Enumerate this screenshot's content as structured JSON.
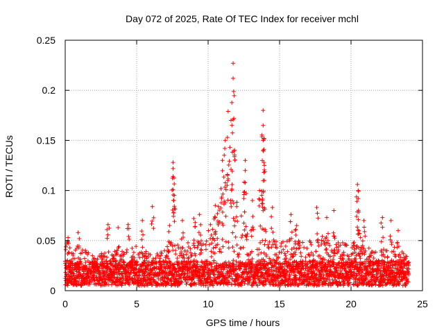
{
  "chart_data": {
    "type": "scatter",
    "title": "Day 072 of 2025, Rate Of TEC Index for receiver mchl",
    "xlabel": "GPS time / hours",
    "ylabel": "ROTI / TECUs",
    "xlim": [
      0,
      25
    ],
    "ylim": [
      0,
      0.25
    ],
    "x_ticks": [
      0,
      5,
      10,
      15,
      20,
      25
    ],
    "x_tick_labels": [
      "0",
      "5",
      "10",
      "15",
      "20",
      "25"
    ],
    "y_ticks": [
      0,
      0.05,
      0.1,
      0.15,
      0.2,
      0.25
    ],
    "y_tick_labels": [
      "0",
      "0.05",
      "0.1",
      "0.15",
      "0.2",
      "0.25"
    ],
    "grid": true,
    "marker": "+",
    "color": "#ff0000",
    "series": [
      {
        "name": "ROTI",
        "baseline_range": [
          0.005,
          0.04
        ],
        "envelope": [
          {
            "x": 0,
            "y": 0.05
          },
          {
            "x": 0.5,
            "y": 0.04
          },
          {
            "x": 1,
            "y": 0.045
          },
          {
            "x": 2,
            "y": 0.035
          },
          {
            "x": 3,
            "y": 0.04
          },
          {
            "x": 4,
            "y": 0.04
          },
          {
            "x": 5,
            "y": 0.045
          },
          {
            "x": 6,
            "y": 0.04
          },
          {
            "x": 7,
            "y": 0.05
          },
          {
            "x": 8,
            "y": 0.045
          },
          {
            "x": 9,
            "y": 0.05
          },
          {
            "x": 10,
            "y": 0.06
          },
          {
            "x": 10.5,
            "y": 0.08
          },
          {
            "x": 11,
            "y": 0.11
          },
          {
            "x": 11.5,
            "y": 0.13
          },
          {
            "x": 12,
            "y": 0.09
          },
          {
            "x": 12.5,
            "y": 0.07
          },
          {
            "x": 13,
            "y": 0.06
          },
          {
            "x": 13.8,
            "y": 0.07
          },
          {
            "x": 14.5,
            "y": 0.05
          },
          {
            "x": 15,
            "y": 0.05
          },
          {
            "x": 16,
            "y": 0.05
          },
          {
            "x": 17,
            "y": 0.05
          },
          {
            "x": 18,
            "y": 0.055
          },
          {
            "x": 19,
            "y": 0.05
          },
          {
            "x": 20,
            "y": 0.045
          },
          {
            "x": 20.5,
            "y": 0.06
          },
          {
            "x": 21,
            "y": 0.045
          },
          {
            "x": 22,
            "y": 0.04
          },
          {
            "x": 23,
            "y": 0.045
          },
          {
            "x": 24,
            "y": 0.04
          }
        ],
        "peaks": [
          {
            "x": 0.2,
            "y": 0.053
          },
          {
            "x": 0.9,
            "y": 0.058
          },
          {
            "x": 3.0,
            "y": 0.066
          },
          {
            "x": 3.7,
            "y": 0.063
          },
          {
            "x": 4.4,
            "y": 0.066
          },
          {
            "x": 5.4,
            "y": 0.07
          },
          {
            "x": 6.1,
            "y": 0.084
          },
          {
            "x": 7.3,
            "y": 0.065
          },
          {
            "x": 7.55,
            "y": 0.128
          },
          {
            "x": 7.55,
            "y": 0.122
          },
          {
            "x": 7.55,
            "y": 0.114
          },
          {
            "x": 7.6,
            "y": 0.09
          },
          {
            "x": 8.2,
            "y": 0.07
          },
          {
            "x": 9.0,
            "y": 0.072
          },
          {
            "x": 9.4,
            "y": 0.076
          },
          {
            "x": 10.5,
            "y": 0.085
          },
          {
            "x": 11.0,
            "y": 0.13
          },
          {
            "x": 11.2,
            "y": 0.15
          },
          {
            "x": 11.4,
            "y": 0.179
          },
          {
            "x": 11.6,
            "y": 0.17
          },
          {
            "x": 11.75,
            "y": 0.227
          },
          {
            "x": 11.75,
            "y": 0.212
          },
          {
            "x": 11.8,
            "y": 0.172
          },
          {
            "x": 12.6,
            "y": 0.13
          },
          {
            "x": 12.6,
            "y": 0.12
          },
          {
            "x": 13.1,
            "y": 0.09
          },
          {
            "x": 13.6,
            "y": 0.1
          },
          {
            "x": 13.85,
            "y": 0.18
          },
          {
            "x": 13.85,
            "y": 0.165
          },
          {
            "x": 13.85,
            "y": 0.15
          },
          {
            "x": 13.85,
            "y": 0.14
          },
          {
            "x": 13.9,
            "y": 0.128
          },
          {
            "x": 13.9,
            "y": 0.118
          },
          {
            "x": 14.5,
            "y": 0.083
          },
          {
            "x": 15.8,
            "y": 0.076
          },
          {
            "x": 16.2,
            "y": 0.065
          },
          {
            "x": 17.6,
            "y": 0.083
          },
          {
            "x": 18.3,
            "y": 0.073
          },
          {
            "x": 18.8,
            "y": 0.08
          },
          {
            "x": 20.45,
            "y": 0.106
          },
          {
            "x": 20.5,
            "y": 0.1
          },
          {
            "x": 20.5,
            "y": 0.092
          },
          {
            "x": 20.9,
            "y": 0.07
          },
          {
            "x": 22.2,
            "y": 0.073
          },
          {
            "x": 22.8,
            "y": 0.07
          },
          {
            "x": 23.3,
            "y": 0.06
          }
        ]
      }
    ]
  }
}
